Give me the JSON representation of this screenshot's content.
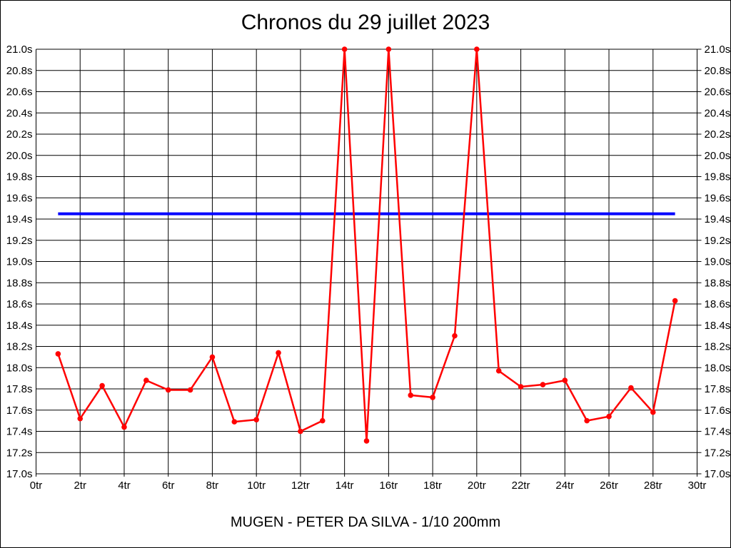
{
  "chart_data": {
    "type": "line",
    "title": "Chronos du 29 juillet 2023",
    "caption": "MUGEN - PETER DA SILVA - 1/10 200mm",
    "xlabel": "",
    "ylabel": "",
    "x_unit": "tr",
    "y_unit": "s",
    "xlim": [
      0,
      30
    ],
    "ylim": [
      17.0,
      21.0
    ],
    "x_tick_step": 2,
    "y_tick_step": 0.2,
    "x_tick_labels": [
      "0tr",
      "2tr",
      "4tr",
      "6tr",
      "8tr",
      "10tr",
      "12tr",
      "14tr",
      "16tr",
      "18tr",
      "20tr",
      "22tr",
      "24tr",
      "26tr",
      "28tr",
      "30tr"
    ],
    "y_tick_labels": [
      "21.0s",
      "20.8s",
      "20.6s",
      "20.4s",
      "20.2s",
      "20.0s",
      "19.8s",
      "19.6s",
      "19.4s",
      "19.2s",
      "19.0s",
      "18.8s",
      "18.6s",
      "18.4s",
      "18.2s",
      "18.0s",
      "17.8s",
      "17.6s",
      "17.4s",
      "17.2s",
      "17.0s"
    ],
    "grid": true,
    "grid_color": "#000000",
    "background_color": "#ffffff",
    "series_color": "#ff0000",
    "x": [
      1,
      2,
      3,
      4,
      5,
      6,
      7,
      8,
      9,
      10,
      11,
      12,
      13,
      14,
      15,
      16,
      17,
      18,
      19,
      20,
      21,
      22,
      23,
      24,
      25,
      26,
      27,
      28,
      29
    ],
    "values": [
      18.13,
      17.52,
      17.83,
      17.44,
      17.88,
      17.79,
      17.79,
      18.1,
      17.49,
      17.51,
      18.14,
      17.4,
      17.5,
      21.0,
      17.31,
      21.0,
      17.74,
      17.72,
      18.3,
      21.0,
      17.97,
      17.82,
      17.84,
      17.88,
      17.5,
      17.54,
      17.81,
      17.58,
      18.63
    ],
    "average_line": {
      "value": 19.45,
      "x_start": 1,
      "x_end": 29,
      "color": "#0000ff"
    },
    "legend": "none"
  }
}
